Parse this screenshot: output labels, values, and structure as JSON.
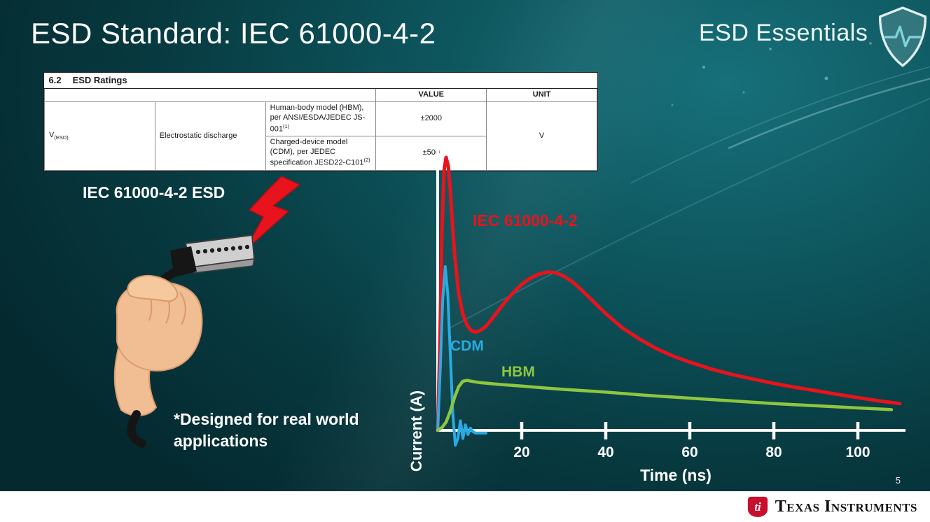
{
  "slide": {
    "title": "ESD Standard: IEC 61000-4-2",
    "brand": "ESD Essentials",
    "page_number": "5",
    "footer_brand": "Texas Instruments"
  },
  "table": {
    "caption_num": "6.2",
    "caption": "ESD Ratings",
    "headers": {
      "value": "VALUE",
      "unit": "UNIT"
    },
    "row_symbol": "V",
    "row_symbol_sub": "(ESD)",
    "row_param": "Electrostatic discharge",
    "rows": [
      {
        "desc": "Human-body model (HBM), per ANSI/ESDA/JEDEC JS-001",
        "sup": "(1)",
        "value": "±2000"
      },
      {
        "desc": "Charged-device model (CDM), per JEDEC specification JESD22-C101",
        "sup": "(2)",
        "value": "±500"
      }
    ],
    "unit": "V"
  },
  "illustration": {
    "label": "IEC 61000-4-2 ESD",
    "note_line1": "*Designed for real world",
    "note_line2": "applications"
  },
  "icons": {
    "shield": "shield-pulse-icon",
    "bolt": "lightning-bolt-icon",
    "ti_bug": "ti-logo-icon"
  },
  "colors": {
    "background_teal": "#0d545c",
    "accent_red": "#e8131d",
    "axis_white": "#ffffff"
  },
  "chart_data": {
    "type": "line",
    "title": "",
    "xlabel": "Time (ns)",
    "ylabel": "Current (A)",
    "xlim": [
      0,
      112
    ],
    "ylim": [
      -0.08,
      1.08
    ],
    "x_ticks": [
      20,
      40,
      60,
      80,
      100
    ],
    "grid": false,
    "legend_position": "labels-on-curves",
    "series": [
      {
        "name": "IEC 61000-4-2",
        "color": "#e8131d",
        "x": [
          0,
          0.5,
          1,
          1.5,
          2,
          2.5,
          3,
          3.5,
          4,
          5,
          6,
          7,
          8,
          9,
          10,
          11,
          12,
          14,
          16,
          18,
          20,
          22,
          24,
          26,
          28,
          30,
          32,
          34,
          36,
          38,
          40,
          44,
          48,
          52,
          56,
          60,
          65,
          70,
          75,
          80,
          85,
          90,
          95,
          100,
          105,
          110
        ],
        "y": [
          0,
          0.3,
          0.72,
          0.95,
          1.0,
          0.97,
          0.88,
          0.76,
          0.65,
          0.5,
          0.425,
          0.385,
          0.365,
          0.36,
          0.365,
          0.375,
          0.39,
          0.43,
          0.47,
          0.505,
          0.535,
          0.557,
          0.572,
          0.58,
          0.578,
          0.565,
          0.545,
          0.518,
          0.488,
          0.458,
          0.428,
          0.375,
          0.335,
          0.3,
          0.272,
          0.25,
          0.225,
          0.205,
          0.188,
          0.172,
          0.158,
          0.145,
          0.132,
          0.12,
          0.108,
          0.098
        ]
      },
      {
        "name": "CDM",
        "color": "#29abe2",
        "x": [
          0,
          0.6,
          1.2,
          1.8,
          2.4,
          3.0,
          3.6,
          4.2,
          4.8,
          5.4,
          6.0,
          6.6,
          7.2,
          7.8,
          8.4,
          9.0,
          10,
          11.5
        ],
        "y": [
          0,
          0.22,
          0.48,
          0.6,
          0.5,
          0.28,
          0.06,
          -0.055,
          -0.03,
          0.035,
          -0.03,
          0.02,
          -0.015,
          0.008,
          -0.005,
          -0.01,
          -0.01,
          -0.01
        ]
      },
      {
        "name": "HBM",
        "color": "#8dc63f",
        "x": [
          0,
          1,
          2,
          3,
          4,
          5,
          6,
          7,
          8,
          10,
          12,
          15,
          20,
          25,
          30,
          35,
          40,
          50,
          60,
          70,
          80,
          90,
          100,
          108
        ],
        "y": [
          0,
          0.01,
          0.03,
          0.07,
          0.12,
          0.16,
          0.18,
          0.183,
          0.18,
          0.175,
          0.172,
          0.168,
          0.162,
          0.156,
          0.15,
          0.145,
          0.14,
          0.128,
          0.118,
          0.108,
          0.098,
          0.09,
          0.082,
          0.076
        ]
      }
    ]
  }
}
